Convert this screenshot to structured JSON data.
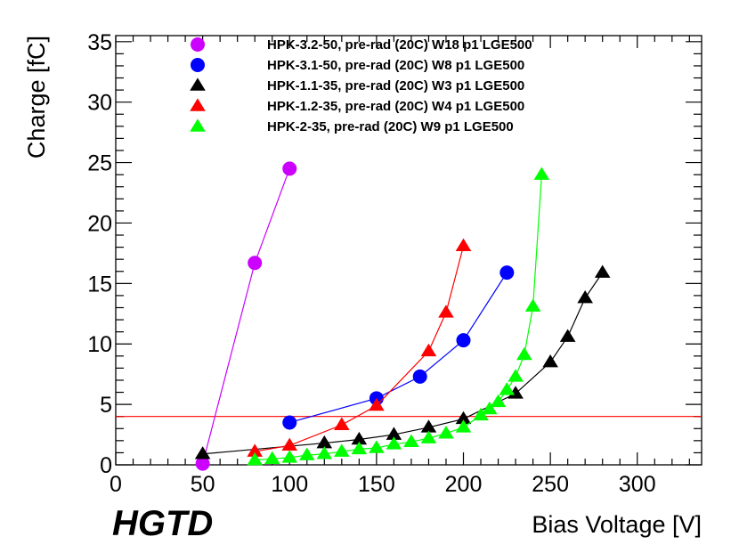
{
  "chart_data": {
    "type": "line",
    "brand_label": "HGTD",
    "xlabel": "Bias Voltage [V]",
    "ylabel": "Charge [fC]",
    "xlim": [
      0,
      337
    ],
    "ylim": [
      0,
      35.5
    ],
    "xticks": [
      0,
      50,
      100,
      150,
      200,
      250,
      300
    ],
    "yticks": [
      0,
      5,
      10,
      15,
      20,
      25,
      30,
      35
    ],
    "grid": false,
    "legend_position": "top",
    "reference_line": {
      "y": 4,
      "color": "#ff0000"
    },
    "series": [
      {
        "name": "HPK-3.2-50, pre-rad (20C) W18 p1 LGE500",
        "color": "#cc00ff",
        "marker": "circle",
        "x": [
          50,
          80,
          100
        ],
        "y": [
          0.1,
          16.7,
          24.5
        ]
      },
      {
        "name": "HPK-3.1-50, pre-rad (20C) W8 p1 LGE500",
        "color": "#0000ff",
        "marker": "circle",
        "x": [
          100,
          150,
          175,
          200,
          225
        ],
        "y": [
          3.5,
          5.5,
          7.3,
          10.3,
          15.9
        ]
      },
      {
        "name": "HPK-1.1-35, pre-rad (20C) W3 p1 LGE500",
        "color": "#000000",
        "marker": "triangle",
        "x": [
          50,
          120,
          140,
          160,
          180,
          200,
          230,
          250,
          260,
          270,
          280
        ],
        "y": [
          0.9,
          1.8,
          2.1,
          2.5,
          3.1,
          3.8,
          5.9,
          8.5,
          10.6,
          13.8,
          15.9
        ]
      },
      {
        "name": "HPK-1.2-35, pre-rad (20C) W4 p1 LGE500",
        "color": "#ff0000",
        "marker": "triangle",
        "x": [
          80,
          100,
          130,
          150,
          180,
          190,
          200
        ],
        "y": [
          1.1,
          1.6,
          3.3,
          4.9,
          9.4,
          12.6,
          18.1
        ]
      },
      {
        "name": "HPK-2-35, pre-rad (20C) W9 p1 LGE500",
        "color": "#00ff00",
        "marker": "triangle",
        "x": [
          80,
          90,
          100,
          110,
          120,
          130,
          140,
          150,
          160,
          170,
          180,
          190,
          200,
          210,
          215,
          220,
          225,
          230,
          235,
          240,
          245
        ],
        "y": [
          0.4,
          0.5,
          0.6,
          0.8,
          0.9,
          1.1,
          1.3,
          1.4,
          1.7,
          1.9,
          2.2,
          2.6,
          3.1,
          4.1,
          4.6,
          5.2,
          6.2,
          7.3,
          9.1,
          13.1,
          24.0
        ]
      }
    ]
  }
}
